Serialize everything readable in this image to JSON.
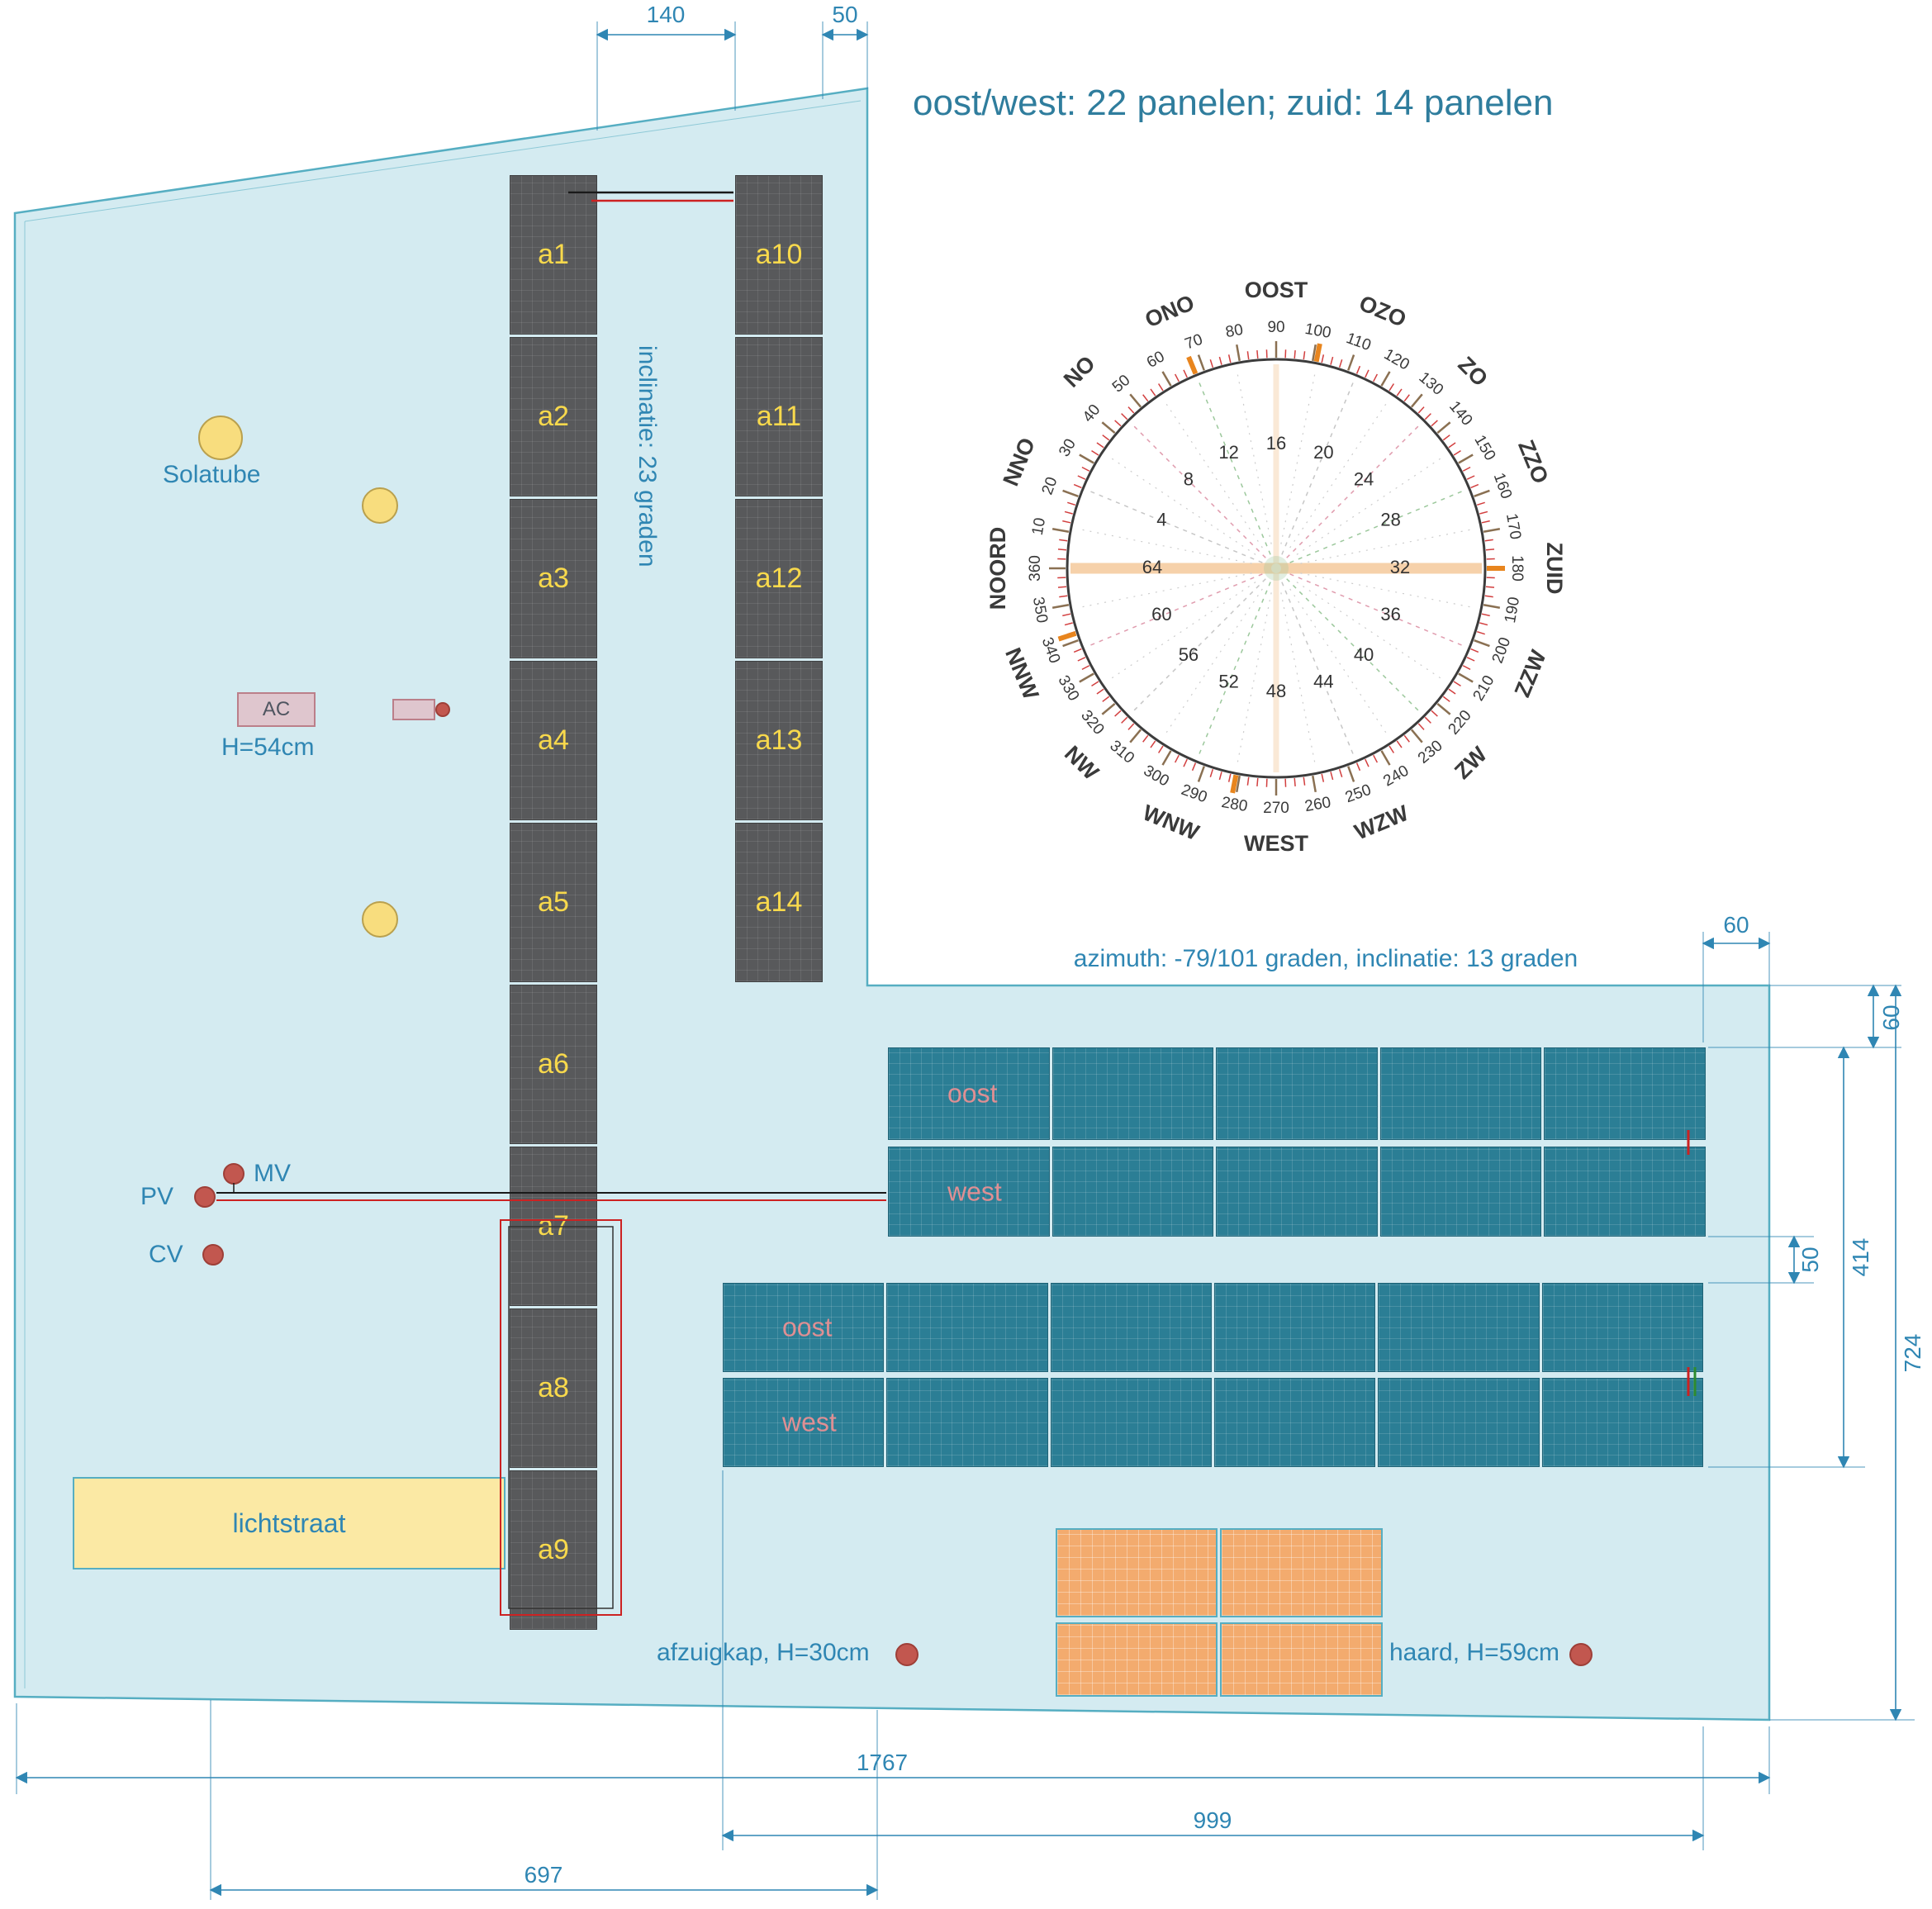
{
  "title": "oost/west: 22 panelen; zuid: 14 panelen",
  "annotations": {
    "inclination": "inclinatie: 23 graden",
    "compass_caption": "azimuth: -79/101 graden, inclinatie: 13 graden",
    "solatube": "Solatube",
    "ac": "AC",
    "ac_height": "H=54cm",
    "pv": "PV",
    "mv": "MV",
    "cv": "CV",
    "lichtstraat": "lichtstraat",
    "afzuigkap": "afzuigkap, H=30cm",
    "haard": "haard, H=59cm"
  },
  "panels": {
    "south_column_1": [
      "a1",
      "a2",
      "a3",
      "a4",
      "a5",
      "a6",
      "a7",
      "a8",
      "a9"
    ],
    "south_column_2": [
      "a10",
      "a11",
      "a12",
      "a13",
      "a14"
    ],
    "eastwest_upper": [
      "oost",
      "west"
    ],
    "eastwest_lower": [
      "oost",
      "west"
    ]
  },
  "dimensions": {
    "top_gap": "140",
    "top_edge": "50",
    "right_offset_h": "60",
    "right_offset_v": "60",
    "right_row_gap": "50",
    "right_array_height": "414",
    "right_total_height": "724",
    "bottom_total": "1767",
    "bottom_array": "999",
    "bottom_left": "697"
  },
  "compass": {
    "degrees": [
      "10",
      "20",
      "30",
      "40",
      "50",
      "60",
      "70",
      "80",
      "90",
      "100",
      "110",
      "120",
      "130",
      "140",
      "150",
      "160",
      "170",
      "180",
      "190",
      "200",
      "210",
      "220",
      "230",
      "240",
      "250",
      "260",
      "270",
      "280",
      "290",
      "300",
      "310",
      "320",
      "330",
      "340",
      "350",
      "360"
    ],
    "directions": [
      "NOORD",
      "NNO",
      "NO",
      "ONO",
      "OOST",
      "OZO",
      "ZO",
      "ZZO",
      "ZUID",
      "ZZW",
      "ZW",
      "WZW",
      "WEST",
      "WNW",
      "NW",
      "NNW"
    ],
    "spoke_numbers": [
      "16",
      "20",
      "24",
      "28",
      "32",
      "36",
      "40",
      "44",
      "48",
      "52",
      "56",
      "60",
      "64",
      "4",
      "8",
      "12"
    ]
  },
  "colors": {
    "roof_fill": "#d4ebf1",
    "roof_stroke": "#56aec2",
    "dim": "#2f86b3",
    "title": "#2f7d9d",
    "dark_panel": "#58595b",
    "dark_label": "#f8d94c",
    "teal_panel": "#2b7e95",
    "teal_label": "#df8f93",
    "orange_panel": "#f3ab6e",
    "yellow_fill": "#fbe9a4",
    "dot": "#c2574f",
    "wire_red": "#cc2222",
    "wire_black": "#1a1a1a",
    "tick_minor": "#d23f3f",
    "tick_major": "#8a7052",
    "tick_highlight": "#e8851e",
    "peach": "#f6cfa6"
  }
}
